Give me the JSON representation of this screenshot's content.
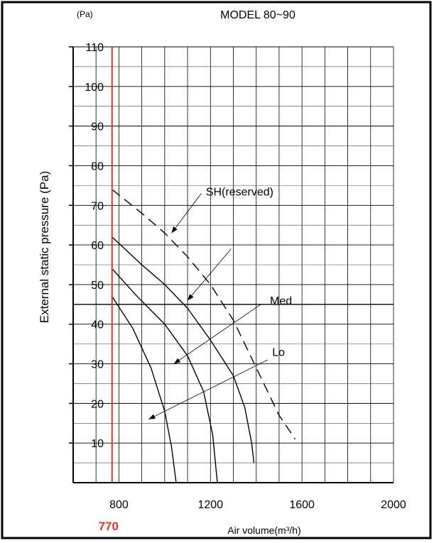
{
  "chart_data": {
    "type": "line",
    "title": "MODEL 80~90",
    "y_unit": "(Pa)",
    "xlabel": "Air volume(m³/h)",
    "ylabel": "External static pressure (Pa)",
    "xlim": [
      600,
      2000
    ],
    "ylim": [
      0,
      110
    ],
    "x_ticks": [
      800,
      1200,
      1600,
      2000
    ],
    "y_ticks": [
      10,
      20,
      30,
      40,
      50,
      60,
      70,
      80,
      90,
      100,
      110
    ],
    "grid": true,
    "reference_line": {
      "x": 770,
      "label": "770",
      "color": "#e8302a"
    },
    "series": [
      {
        "name": "SH(reserved)",
        "style": "dashed",
        "points": [
          [
            770,
            74
          ],
          [
            900,
            68
          ],
          [
            1000,
            63
          ],
          [
            1100,
            57
          ],
          [
            1200,
            50
          ],
          [
            1300,
            41
          ],
          [
            1400,
            29
          ],
          [
            1500,
            17
          ],
          [
            1570,
            11
          ]
        ]
      },
      {
        "name": "Med",
        "style": "solid",
        "points": [
          [
            770,
            62
          ],
          [
            900,
            55
          ],
          [
            1000,
            50
          ],
          [
            1100,
            44
          ],
          [
            1200,
            36
          ],
          [
            1300,
            27
          ],
          [
            1350,
            19
          ],
          [
            1380,
            10
          ],
          [
            1390,
            5
          ]
        ]
      },
      {
        "name": "",
        "style": "solid",
        "points": [
          [
            770,
            54
          ],
          [
            880,
            47
          ],
          [
            1000,
            40
          ],
          [
            1100,
            32
          ],
          [
            1170,
            23
          ],
          [
            1210,
            12
          ],
          [
            1230,
            0
          ]
        ]
      },
      {
        "name": "Lo",
        "style": "solid",
        "points": [
          [
            770,
            47
          ],
          [
            860,
            39
          ],
          [
            940,
            29
          ],
          [
            1000,
            18
          ],
          [
            1030,
            9
          ],
          [
            1050,
            0
          ]
        ]
      }
    ],
    "annotations": [
      {
        "text": "SH(reserved)",
        "x": 1180,
        "y": 72.5
      },
      {
        "text": "Med",
        "x": 1460,
        "y": 45
      },
      {
        "text": "Lo",
        "x": 1470,
        "y": 32
      }
    ]
  }
}
